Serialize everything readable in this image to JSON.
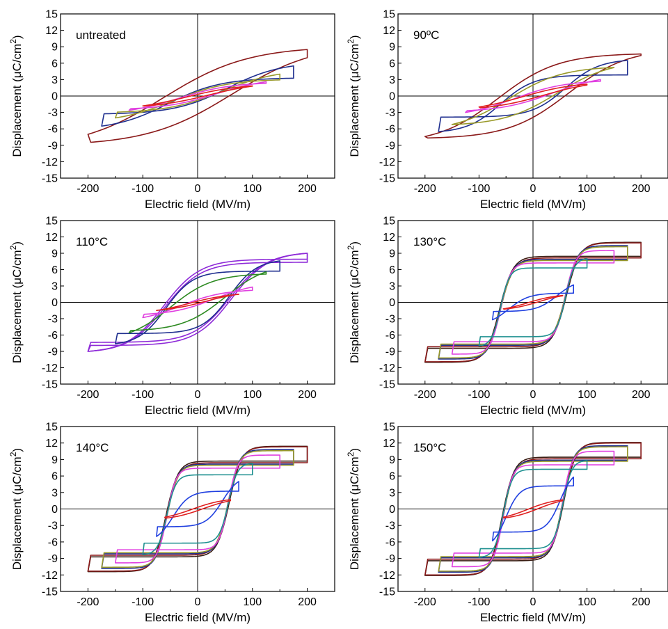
{
  "figure": {
    "x_axis_title": "Electric field (MV/m)",
    "y_axis_title_prefix": "Displacement (",
    "y_axis_title_mu": "μ",
    "y_axis_title_unit": "C/cm",
    "y_axis_title_sup": "2",
    "y_axis_title_suffix": ")"
  },
  "chart_data": [
    {
      "type": "line",
      "label": "untreated",
      "xlim": [
        -250,
        250
      ],
      "ylim": [
        -15,
        15
      ],
      "x_ticks": [
        -200,
        -100,
        0,
        100,
        200
      ],
      "y_ticks": [
        -15,
        -12,
        -9,
        -6,
        -3,
        0,
        3,
        6,
        9,
        12,
        15
      ],
      "loops": [
        {
          "color": "#8B1A1A",
          "Emax": 200,
          "Dmax": 7.0,
          "Dr": 3.3,
          "Ec": 62,
          "shape": 1.3
        },
        {
          "color": "#1F2F8F",
          "Emax": 175,
          "Dmax": 5.5,
          "Dr": 1.0,
          "Ec": 55,
          "shape": 1.8
        },
        {
          "color": "#9A9A2A",
          "Emax": 150,
          "Dmax": 4.0,
          "Dr": 0.8,
          "Ec": 45,
          "shape": 1.5
        },
        {
          "color": "#E040E0",
          "Emax": 125,
          "Dmax": 2.6,
          "Dr": 0.6,
          "Ec": 35,
          "shape": 1.3
        },
        {
          "color": "#E02020",
          "Emax": 100,
          "Dmax": 1.8,
          "Dr": 0.3,
          "Ec": 20,
          "shape": 1.0
        }
      ]
    },
    {
      "type": "line",
      "label": "90ºC",
      "xlim": [
        -250,
        250
      ],
      "ylim": [
        -15,
        15
      ],
      "x_ticks": [
        -200,
        -100,
        0,
        100,
        200
      ],
      "y_ticks": [
        -15,
        -12,
        -9,
        -6,
        -3,
        0,
        3,
        6,
        9,
        12,
        15
      ],
      "loops": [
        {
          "color": "#8B1A1A",
          "Emax": 200,
          "Dmax": 7.4,
          "Dr": 3.9,
          "Ec": 65,
          "shape": 1.8
        },
        {
          "color": "#1F2F8F",
          "Emax": 175,
          "Dmax": 6.5,
          "Dr": 2.5,
          "Ec": 60,
          "shape": 2.8
        },
        {
          "color": "#9A9A2A",
          "Emax": 150,
          "Dmax": 5.2,
          "Dr": 2.0,
          "Ec": 45,
          "shape": 1.5
        },
        {
          "color": "#E040E0",
          "Emax": 125,
          "Dmax": 3.0,
          "Dr": 0.7,
          "Ec": 35,
          "shape": 1.3
        },
        {
          "color": "#E02020",
          "Emax": 100,
          "Dmax": 2.0,
          "Dr": 0.4,
          "Ec": 20,
          "shape": 1.0
        }
      ]
    },
    {
      "type": "line",
      "label": "110°C",
      "xlim": [
        -250,
        250
      ],
      "ylim": [
        -15,
        15
      ],
      "x_ticks": [
        -200,
        -100,
        0,
        100,
        200
      ],
      "y_ticks": [
        -15,
        -12,
        -9,
        -6,
        -3,
        0,
        3,
        6,
        9,
        12,
        15
      ],
      "loops": [
        {
          "color": "#8E2BD8",
          "Emax": 200,
          "Dmax": 9.0,
          "Dr": 5.6,
          "Ec": 62,
          "shape": 3.0
        },
        {
          "color": "#8E2BD8",
          "Emax": 200,
          "Dmax": 9.0,
          "Dr": 5.0,
          "Ec": 60,
          "shape": 3.0
        },
        {
          "color": "#1F2F8F",
          "Emax": 150,
          "Dmax": 7.6,
          "Dr": 4.5,
          "Ec": 58,
          "shape": 3.0
        },
        {
          "color": "#2E8B22",
          "Emax": 125,
          "Dmax": 5.6,
          "Dr": 2.6,
          "Ec": 50,
          "shape": 1.6
        },
        {
          "color": "#E040E0",
          "Emax": 100,
          "Dmax": 2.8,
          "Dr": 0.5,
          "Ec": 30,
          "shape": 1.3
        },
        {
          "color": "#E02020",
          "Emax": 75,
          "Dmax": 1.5,
          "Dr": 0.2,
          "Ec": 15,
          "shape": 1.0
        }
      ]
    },
    {
      "type": "line",
      "label": "130°C",
      "xlim": [
        -250,
        250
      ],
      "ylim": [
        -15,
        15
      ],
      "x_ticks": [
        -200,
        -100,
        0,
        100,
        200
      ],
      "y_ticks": [
        -15,
        -12,
        -9,
        -6,
        -3,
        0,
        3,
        6,
        9,
        12,
        15
      ],
      "loops": [
        {
          "color": "#3A1E14",
          "Emax": 200,
          "Dmax": 11.0,
          "Dr": 8.3,
          "Ec": 62,
          "shape": 8.0
        },
        {
          "color": "#8B1A1A",
          "Emax": 200,
          "Dmax": 10.9,
          "Dr": 8.0,
          "Ec": 61,
          "shape": 8.0
        },
        {
          "color": "#1F2F8F",
          "Emax": 175,
          "Dmax": 10.4,
          "Dr": 7.8,
          "Ec": 60,
          "shape": 8.0
        },
        {
          "color": "#9A9A2A",
          "Emax": 175,
          "Dmax": 10.2,
          "Dr": 7.6,
          "Ec": 60,
          "shape": 8.0
        },
        {
          "color": "#E040E0",
          "Emax": 150,
          "Dmax": 9.5,
          "Dr": 7.2,
          "Ec": 60,
          "shape": 8.0
        },
        {
          "color": "#1E9090",
          "Emax": 100,
          "Dmax": 8.0,
          "Dr": 6.3,
          "Ec": 60,
          "shape": 6.0
        },
        {
          "color": "#2040E0",
          "Emax": 75,
          "Dmax": 3.2,
          "Dr": 1.2,
          "Ec": 45,
          "shape": 2.0
        },
        {
          "color": "#E02020",
          "Emax": 55,
          "Dmax": 1.2,
          "Dr": 0.2,
          "Ec": 10,
          "shape": 1.0
        }
      ]
    },
    {
      "type": "line",
      "label": "140°C",
      "xlim": [
        -250,
        250
      ],
      "ylim": [
        -15,
        15
      ],
      "x_ticks": [
        -200,
        -100,
        0,
        100,
        200
      ],
      "y_ticks": [
        -15,
        -12,
        -9,
        -6,
        -3,
        0,
        3,
        6,
        9,
        12,
        15
      ],
      "loops": [
        {
          "color": "#3A1E14",
          "Emax": 200,
          "Dmax": 11.4,
          "Dr": 8.6,
          "Ec": 58,
          "shape": 9.0
        },
        {
          "color": "#8B1A1A",
          "Emax": 200,
          "Dmax": 11.3,
          "Dr": 8.3,
          "Ec": 57,
          "shape": 9.0
        },
        {
          "color": "#1F2F8F",
          "Emax": 175,
          "Dmax": 10.8,
          "Dr": 8.1,
          "Ec": 56,
          "shape": 9.0
        },
        {
          "color": "#9A9A2A",
          "Emax": 175,
          "Dmax": 10.6,
          "Dr": 7.9,
          "Ec": 56,
          "shape": 9.0
        },
        {
          "color": "#E040E0",
          "Emax": 150,
          "Dmax": 9.8,
          "Dr": 7.4,
          "Ec": 56,
          "shape": 9.0
        },
        {
          "color": "#1E9090",
          "Emax": 100,
          "Dmax": 8.3,
          "Dr": 6.2,
          "Ec": 56,
          "shape": 6.0
        },
        {
          "color": "#2040E0",
          "Emax": 75,
          "Dmax": 5.0,
          "Dr": 2.8,
          "Ec": 45,
          "shape": 2.5
        },
        {
          "color": "#E02020",
          "Emax": 60,
          "Dmax": 1.5,
          "Dr": 0.3,
          "Ec": 10,
          "shape": 1.0
        }
      ]
    },
    {
      "type": "line",
      "label": "150°C",
      "xlim": [
        -250,
        250
      ],
      "ylim": [
        -15,
        15
      ],
      "x_ticks": [
        -200,
        -100,
        0,
        100,
        200
      ],
      "y_ticks": [
        -15,
        -12,
        -9,
        -6,
        -3,
        0,
        3,
        6,
        9,
        12,
        15
      ],
      "loops": [
        {
          "color": "#3A1E14",
          "Emax": 200,
          "Dmax": 12.1,
          "Dr": 9.3,
          "Ec": 57,
          "shape": 9.0
        },
        {
          "color": "#8B1A1A",
          "Emax": 200,
          "Dmax": 12.0,
          "Dr": 9.0,
          "Ec": 56,
          "shape": 9.0
        },
        {
          "color": "#1F2F8F",
          "Emax": 175,
          "Dmax": 11.5,
          "Dr": 8.8,
          "Ec": 55,
          "shape": 9.0
        },
        {
          "color": "#9A9A2A",
          "Emax": 175,
          "Dmax": 11.3,
          "Dr": 8.6,
          "Ec": 55,
          "shape": 9.0
        },
        {
          "color": "#E040E0",
          "Emax": 150,
          "Dmax": 10.5,
          "Dr": 8.0,
          "Ec": 55,
          "shape": 9.0
        },
        {
          "color": "#1E9090",
          "Emax": 100,
          "Dmax": 8.8,
          "Dr": 7.2,
          "Ec": 55,
          "shape": 6.0
        },
        {
          "color": "#2040E0",
          "Emax": 75,
          "Dmax": 5.8,
          "Dr": 4.0,
          "Ec": 50,
          "shape": 3.0
        },
        {
          "color": "#E02020",
          "Emax": 55,
          "Dmax": 1.5,
          "Dr": 0.3,
          "Ec": 10,
          "shape": 1.0
        }
      ]
    }
  ]
}
